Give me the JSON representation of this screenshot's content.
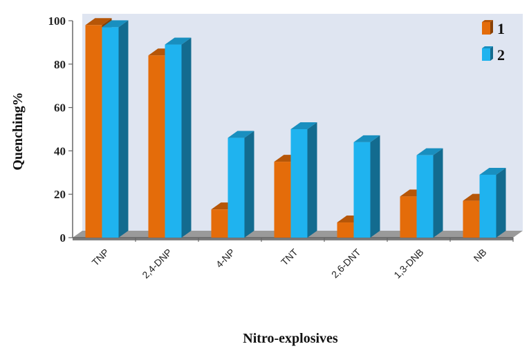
{
  "chart_data": {
    "type": "bar",
    "categories": [
      "TNP",
      "2,4-DNP",
      "4-NP",
      "TNT",
      "2,6-DNT",
      "1,3-DNB",
      "NB"
    ],
    "series": [
      {
        "name": "1",
        "values": [
          98,
          84,
          13,
          35,
          7,
          19,
          17
        ],
        "color": "#e46c0a"
      },
      {
        "name": "2",
        "values": [
          97,
          89,
          46,
          50,
          44,
          38,
          29
        ],
        "color": "#1fb3ef"
      }
    ],
    "xlabel": "Nitro-explosives",
    "ylabel": "Quenching%",
    "ylim": [
      0,
      100
    ],
    "yticks": [
      "0",
      "20",
      "40",
      "60",
      "80",
      "100"
    ],
    "legend_position": "top-right",
    "style": "3d-clustered-column",
    "grid": false
  }
}
